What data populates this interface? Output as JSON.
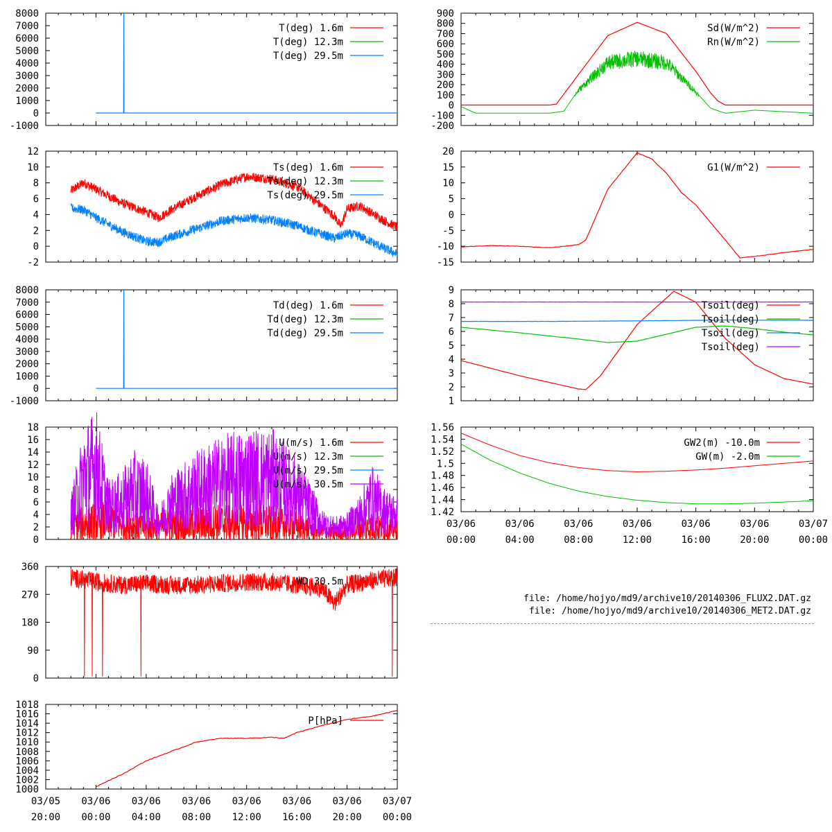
{
  "colors": {
    "red": "#ff0000",
    "green": "#00c000",
    "blue": "#0080ff",
    "purple": "#c000ff",
    "grid": "#000000"
  },
  "time_ticks": [
    {
      "date": "03/05",
      "time": "20:00"
    },
    {
      "date": "03/06",
      "time": "00:00"
    },
    {
      "date": "03/06",
      "time": "04:00"
    },
    {
      "date": "03/06",
      "time": "08:00"
    },
    {
      "date": "03/06",
      "time": "12:00"
    },
    {
      "date": "03/06",
      "time": "16:00"
    },
    {
      "date": "03/06",
      "time": "20:00"
    },
    {
      "date": "03/07",
      "time": "00:00"
    }
  ],
  "files": [
    "file: /home/hojyo/md9/archive10/20140306_FLUX2.DAT.gz",
    "file: /home/hojyo/md9/archive10/20140306_MET2.DAT.gz"
  ],
  "chart_data": [
    {
      "id": "t",
      "type": "line",
      "x_range": [
        "03/05 20:00",
        "03/07 00:00"
      ],
      "ylim": [
        -1000,
        8000
      ],
      "yticks": [
        "-1000",
        "0",
        "1000",
        "2000",
        "3000",
        "4000",
        "5000",
        "6000",
        "7000",
        "8000"
      ],
      "series": [
        {
          "name": "T(deg)  1.6m",
          "color": "#ff0000",
          "x": [],
          "y": []
        },
        {
          "name": "T(deg) 12.3m",
          "color": "#00c000",
          "x": [],
          "y": []
        },
        {
          "name": "T(deg) 29.5m",
          "color": "#0080ff",
          "x": [
            "03/06 00:00",
            "03/06 02:12",
            "03/06 02:13",
            "03/06 02:14",
            "03/07 00:00"
          ],
          "y": [
            0,
            0,
            7999,
            0,
            0
          ]
        }
      ]
    },
    {
      "id": "ts",
      "type": "line",
      "x_range": [
        "03/05 20:00",
        "03/07 00:00"
      ],
      "ylim": [
        -2,
        12
      ],
      "yticks": [
        "-2",
        "0",
        "2",
        "4",
        "6",
        "8",
        "10",
        "12"
      ],
      "series": [
        {
          "name": "Ts(deg)  1.6m",
          "color": "#ff0000",
          "x": [
            "03/05 22:00",
            "03/05 23:00",
            "03/06 00:00",
            "03/06 02:00",
            "03/06 04:00",
            "03/06 05:00",
            "03/06 06:00",
            "03/06 08:00",
            "03/06 10:00",
            "03/06 12:00",
            "03/06 14:00",
            "03/06 16:00",
            "03/06 17:00",
            "03/06 19:00",
            "03/06 19:30",
            "03/06 20:00",
            "03/06 21:00",
            "03/06 23:00",
            "03/07 00:00"
          ],
          "y": [
            7.0,
            8.0,
            7.2,
            5.5,
            4.3,
            3.6,
            4.6,
            6.3,
            7.8,
            8.8,
            8.5,
            7.5,
            6.3,
            3.8,
            2.5,
            4.7,
            5.1,
            3.2,
            2.4
          ]
        },
        {
          "name": "Ts(deg) 12.3m",
          "color": "#00c000",
          "x": [],
          "y": []
        },
        {
          "name": "Ts(deg) 29.5m",
          "color": "#0080ff",
          "x": [
            "03/05 22:00",
            "03/05 23:00",
            "03/06 00:00",
            "03/06 02:00",
            "03/06 04:00",
            "03/06 05:00",
            "03/06 06:00",
            "03/06 08:00",
            "03/06 10:00",
            "03/06 12:00",
            "03/06 14:00",
            "03/06 16:00",
            "03/06 17:00",
            "03/06 19:00",
            "03/06 20:00",
            "03/06 21:00",
            "03/06 23:00",
            "03/07 00:00"
          ],
          "y": [
            4.8,
            4.6,
            3.6,
            1.9,
            0.6,
            0.5,
            1.2,
            2.2,
            3.2,
            3.6,
            3.3,
            2.6,
            2.0,
            1.0,
            1.6,
            1.3,
            -0.3,
            -1.0
          ]
        }
      ]
    },
    {
      "id": "td",
      "type": "line",
      "x_range": [
        "03/05 20:00",
        "03/07 00:00"
      ],
      "ylim": [
        -1000,
        8000
      ],
      "yticks": [
        "-1000",
        "0",
        "1000",
        "2000",
        "3000",
        "4000",
        "5000",
        "6000",
        "7000",
        "8000"
      ],
      "series": [
        {
          "name": "Td(deg)  1.6m",
          "color": "#ff0000",
          "x": [],
          "y": []
        },
        {
          "name": "Td(deg) 12.3m",
          "color": "#00c000",
          "x": [],
          "y": []
        },
        {
          "name": "Td(deg) 29.5m",
          "color": "#0080ff",
          "x": [
            "03/06 00:00",
            "03/06 02:12",
            "03/06 02:13",
            "03/06 02:14",
            "03/07 00:00"
          ],
          "y": [
            0,
            0,
            7999,
            0,
            0
          ]
        }
      ]
    },
    {
      "id": "u",
      "type": "line",
      "x_range": [
        "03/05 20:00",
        "03/07 00:00"
      ],
      "ylim": [
        0,
        18
      ],
      "yticks": [
        "0",
        "2",
        "4",
        "6",
        "8",
        "10",
        "12",
        "14",
        "16",
        "18"
      ],
      "series": [
        {
          "name": "U(m/s)  1.6m",
          "color": "#ff0000",
          "x": [
            "03/05 22:00",
            "03/06 01:00",
            "03/06 04:00",
            "03/06 07:00",
            "03/06 10:00",
            "03/06 13:00",
            "03/06 16:00",
            "03/06 19:00",
            "03/06 21:00",
            "03/07 00:00"
          ],
          "y": [
            1.5,
            2.0,
            1.2,
            1.6,
            1.8,
            1.8,
            1.4,
            0.6,
            1.3,
            1.1
          ]
        },
        {
          "name": "U(m/s) 12.3m",
          "color": "#00c000",
          "x": [],
          "y": []
        },
        {
          "name": "U(m/s) 29.5m",
          "color": "#0080ff",
          "x": [],
          "y": []
        },
        {
          "name": "U(m/s) 30.5m",
          "color": "#c000ff",
          "x": [
            "03/05 22:00",
            "03/05 23:00",
            "03/06 00:00",
            "03/06 01:00",
            "03/06 02:00",
            "03/06 03:00",
            "03/06 04:00",
            "03/06 05:00",
            "03/06 06:00",
            "03/06 08:00",
            "03/06 10:00",
            "03/06 12:00",
            "03/06 14:00",
            "03/06 16:00",
            "03/06 17:00",
            "03/06 18:00",
            "03/06 19:00",
            "03/06 20:00",
            "03/06 21:00",
            "03/06 22:00",
            "03/06 23:00",
            "03/07 00:00"
          ],
          "y": [
            3.0,
            7.5,
            9.0,
            4.0,
            4.5,
            6.0,
            5.5,
            2.0,
            4.5,
            6.0,
            7.0,
            7.5,
            7.5,
            5.5,
            4.0,
            2.0,
            1.5,
            1.8,
            3.0,
            5.0,
            3.5,
            3.0
          ]
        }
      ]
    },
    {
      "id": "wd",
      "type": "line",
      "x_range": [
        "03/05 20:00",
        "03/07 00:00"
      ],
      "ylim": [
        0,
        360
      ],
      "yticks": [
        "0",
        "90",
        "180",
        "270",
        "360"
      ],
      "series": [
        {
          "name": "WD 30.5m",
          "color": "#ff0000",
          "x": [
            "03/05 22:00",
            "03/06 00:00",
            "03/06 02:00",
            "03/06 04:00",
            "03/06 06:00",
            "03/06 08:00",
            "03/06 10:00",
            "03/06 12:00",
            "03/06 14:00",
            "03/06 16:00",
            "03/06 18:00",
            "03/06 19:00",
            "03/06 20:00",
            "03/06 22:00",
            "03/07 00:00"
          ],
          "y": [
            325,
            310,
            300,
            305,
            300,
            300,
            305,
            310,
            310,
            300,
            290,
            240,
            300,
            315,
            325
          ]
        }
      ]
    },
    {
      "id": "p",
      "type": "line",
      "x_range": [
        "03/05 20:00",
        "03/07 00:00"
      ],
      "ylim": [
        1000,
        1018
      ],
      "yticks": [
        "1000",
        "1002",
        "1004",
        "1006",
        "1008",
        "1010",
        "1012",
        "1014",
        "1016",
        "1018"
      ],
      "series": [
        {
          "name": "P[hPa]",
          "color": "#ff0000",
          "x": [
            "03/06 00:00",
            "03/06 01:00",
            "03/06 02:00",
            "03/06 03:00",
            "03/06 04:00",
            "03/06 06:00",
            "03/06 08:00",
            "03/06 10:00",
            "03/06 12:00",
            "03/06 14:00",
            "03/06 15:00",
            "03/06 16:00",
            "03/06 18:00",
            "03/06 20:00",
            "03/06 22:00",
            "03/07 00:00"
          ],
          "y": [
            1000.5,
            1001.8,
            1003.0,
            1004.5,
            1006.0,
            1008.0,
            1010.0,
            1010.8,
            1010.8,
            1011.0,
            1010.8,
            1012.0,
            1013.5,
            1014.8,
            1015.5,
            1016.7
          ]
        }
      ]
    },
    {
      "id": "sd",
      "type": "line",
      "x_range": [
        "03/06 00:00",
        "03/07 00:00"
      ],
      "ylim": [
        -200,
        900
      ],
      "yticks": [
        "-200",
        "-100",
        "0",
        "100",
        "200",
        "300",
        "400",
        "500",
        "600",
        "700",
        "800",
        "900"
      ],
      "series": [
        {
          "name": "Sd(W/m^2)",
          "color": "#ff0000",
          "x": [
            "03/06 00:00",
            "03/06 06:00",
            "03/06 06:30",
            "03/06 08:00",
            "03/06 10:00",
            "03/06 12:00",
            "03/06 14:00",
            "03/06 16:00",
            "03/06 17:00",
            "03/06 17:30",
            "03/06 18:00",
            "03/07 00:00"
          ],
          "y": [
            0,
            0,
            10,
            300,
            680,
            810,
            700,
            330,
            120,
            40,
            0,
            0
          ]
        },
        {
          "name": "Rn(W/m^2)",
          "color": "#00c000",
          "x": [
            "03/06 00:00",
            "03/06 01:00",
            "03/06 06:00",
            "03/06 07:00",
            "03/06 08:00",
            "03/06 10:00",
            "03/06 12:00",
            "03/06 14:00",
            "03/06 16:00",
            "03/06 17:00",
            "03/06 18:00",
            "03/06 20:00",
            "03/07 00:00"
          ],
          "y": [
            -15,
            -80,
            -80,
            -60,
            150,
            430,
            470,
            430,
            130,
            -30,
            -80,
            -50,
            -80
          ]
        }
      ]
    },
    {
      "id": "g1",
      "type": "line",
      "x_range": [
        "03/06 00:00",
        "03/07 00:00"
      ],
      "ylim": [
        -15,
        20
      ],
      "yticks": [
        "-15",
        "-10",
        "-5",
        "0",
        "5",
        "10",
        "15",
        "20"
      ],
      "series": [
        {
          "name": "G1(W/m^2)",
          "color": "#ff0000",
          "x": [
            "03/06 00:00",
            "03/06 02:00",
            "03/06 04:00",
            "03/06 06:00",
            "03/06 08:00",
            "03/06 08:30",
            "03/06 10:00",
            "03/06 12:00",
            "03/06 13:00",
            "03/06 14:00",
            "03/06 15:00",
            "03/06 16:00",
            "03/06 18:00",
            "03/06 19:00",
            "03/06 20:00",
            "03/06 22:00",
            "03/07 00:00"
          ],
          "y": [
            -10.2,
            -9.8,
            -10.0,
            -10.5,
            -9.5,
            -8.0,
            8.0,
            19.5,
            17.5,
            13.0,
            7.0,
            3.0,
            -8.0,
            -13.7,
            -13.2,
            -12.0,
            -11.0
          ]
        }
      ]
    },
    {
      "id": "tsoil",
      "type": "line",
      "x_range": [
        "03/06 00:00",
        "03/07 00:00"
      ],
      "ylim": [
        1,
        9
      ],
      "yticks": [
        "1",
        "2",
        "3",
        "4",
        "5",
        "6",
        "7",
        "8",
        "9"
      ],
      "series": [
        {
          "name": "Tsoil(deg)",
          "color": "#ff0000",
          "x": [
            "03/06 00:00",
            "03/06 04:00",
            "03/06 08:00",
            "03/06 08:30",
            "03/06 09:30",
            "03/06 12:00",
            "03/06 14:30",
            "03/06 16:00",
            "03/06 18:00",
            "03/06 20:00",
            "03/06 22:00",
            "03/07 00:00"
          ],
          "y": [
            3.9,
            2.8,
            1.85,
            1.8,
            2.8,
            6.5,
            8.9,
            8.1,
            5.5,
            3.6,
            2.6,
            2.2
          ]
        },
        {
          "name": "Tsoil(deg)",
          "color": "#00c000",
          "x": [
            "03/06 00:00",
            "03/06 04:00",
            "03/06 08:00",
            "03/06 10:00",
            "03/06 12:00",
            "03/06 14:00",
            "03/06 16:00",
            "03/06 18:00",
            "03/06 20:00",
            "03/06 22:00",
            "03/07 00:00"
          ],
          "y": [
            6.3,
            5.9,
            5.45,
            5.2,
            5.3,
            5.8,
            6.3,
            6.4,
            6.2,
            5.95,
            5.75
          ]
        },
        {
          "name": "Tsoil(deg)",
          "color": "#0080ff",
          "x": [
            "03/06 00:00",
            "03/06 06:00",
            "03/06 12:00",
            "03/06 18:00",
            "03/07 00:00"
          ],
          "y": [
            6.72,
            6.72,
            6.76,
            6.82,
            6.8
          ]
        },
        {
          "name": "Tsoil(deg)",
          "color": "#c000ff",
          "x": [
            "03/06 00:00",
            "03/06 12:00",
            "03/07 00:00"
          ],
          "y": [
            8.12,
            8.12,
            8.12
          ]
        }
      ]
    },
    {
      "id": "gw",
      "type": "line",
      "x_range": [
        "03/06 00:00",
        "03/07 00:00"
      ],
      "ylim": [
        1.42,
        1.56
      ],
      "yticks": [
        "1.42",
        "1.44",
        "1.46",
        "1.48",
        "1.5",
        "1.52",
        "1.54",
        "1.56"
      ],
      "series": [
        {
          "name": "GW2(m) -10.0m",
          "color": "#ff0000",
          "x": [
            "03/06 00:00",
            "03/06 02:00",
            "03/06 04:00",
            "03/06 06:00",
            "03/06 08:00",
            "03/06 10:00",
            "03/06 12:00",
            "03/06 14:00",
            "03/06 16:00",
            "03/06 18:00",
            "03/06 20:00",
            "03/06 22:00",
            "03/07 00:00"
          ],
          "y": [
            1.55,
            1.53,
            1.513,
            1.501,
            1.493,
            1.488,
            1.486,
            1.487,
            1.489,
            1.492,
            1.496,
            1.5,
            1.504
          ]
        },
        {
          "name": "GW(m) -2.0m",
          "color": "#00c000",
          "x": [
            "03/06 00:00",
            "03/06 02:00",
            "03/06 04:00",
            "03/06 06:00",
            "03/06 08:00",
            "03/06 10:00",
            "03/06 12:00",
            "03/06 14:00",
            "03/06 16:00",
            "03/06 18:00",
            "03/06 20:00",
            "03/06 22:00",
            "03/07 00:00"
          ],
          "y": [
            1.532,
            1.505,
            1.484,
            1.467,
            1.454,
            1.445,
            1.439,
            1.435,
            1.433,
            1.433,
            1.434,
            1.436,
            1.438
          ]
        }
      ]
    }
  ]
}
